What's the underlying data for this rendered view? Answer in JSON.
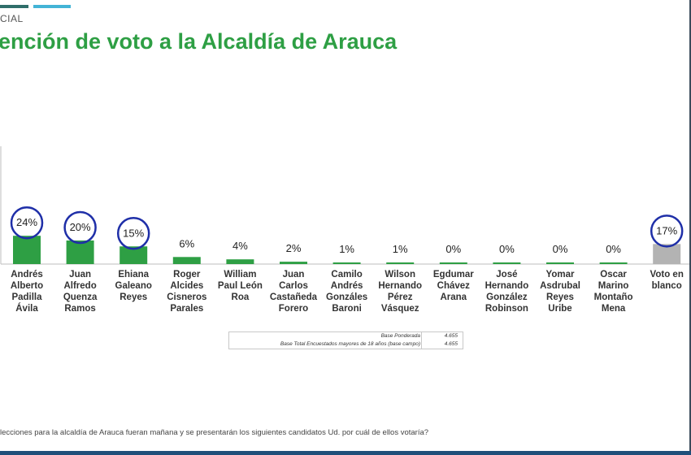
{
  "header": {
    "section": "CIAL",
    "title": "ención de voto a la Alcaldía de Arauca"
  },
  "chart_data": {
    "type": "bar",
    "categories": [
      [
        "Andrés",
        "Alberto",
        "Padilla",
        "Ávila"
      ],
      [
        "Juan",
        "Alfredo",
        "Quenza",
        "Ramos"
      ],
      [
        "Ehiana",
        "Galeano",
        "Reyes"
      ],
      [
        "Roger",
        "Alcides",
        "Cisneros",
        "Parales"
      ],
      [
        "William",
        "Paul León",
        "Roa"
      ],
      [
        "Juan",
        "Carlos",
        "Castañeda",
        "Forero"
      ],
      [
        "Camilo",
        "Andrés",
        "Gonzáles",
        "Baroni"
      ],
      [
        "Wilson",
        "Hernando",
        "Pérez",
        "Vásquez"
      ],
      [
        "Egdumar",
        "Chávez",
        "Arana"
      ],
      [
        "José",
        "Hernando",
        "González",
        "Robinson"
      ],
      [
        "Yomar",
        "Asdrubal",
        "Reyes",
        "Uribe"
      ],
      [
        "Oscar",
        "Marino",
        "Montaño",
        "Mena"
      ],
      [
        "Voto en",
        "blanco"
      ]
    ],
    "values": [
      24,
      20,
      15,
      6,
      4,
      2,
      1,
      1,
      0,
      0,
      0,
      0,
      17
    ],
    "value_labels": [
      "24%",
      "20%",
      "15%",
      "6%",
      "4%",
      "2%",
      "1%",
      "1%",
      "0%",
      "0%",
      "0%",
      "0%",
      "17%"
    ],
    "highlighted": [
      0,
      1,
      2,
      12
    ],
    "ylim": [
      0,
      40
    ],
    "colors": {
      "bar": "#2e9f44",
      "blank_bar": "#b3b3b3",
      "circle": "#1f2fa8"
    }
  },
  "base_table": {
    "rows": [
      {
        "label": "Base Ponderada",
        "value": "4.655"
      },
      {
        "label": "Base Total Encuestados mayores de 18 años (base campo)",
        "value": "4.655"
      }
    ]
  },
  "footer": {
    "question": "lecciones para la alcaldía de Arauca fueran mañana y se presentarán los siguientes candidatos Ud. por cuál de ellos votaría?"
  }
}
